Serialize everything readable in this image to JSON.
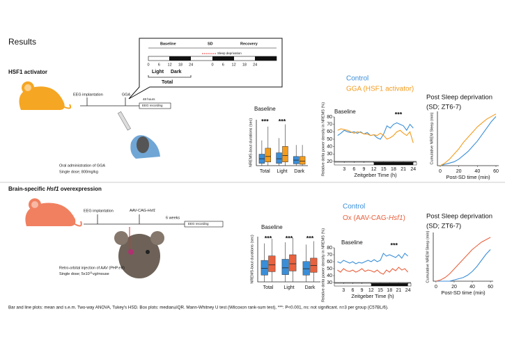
{
  "heading": "Results",
  "schedule": {
    "phases": [
      "Baseline",
      "SD",
      "Recovery"
    ],
    "sd_label": "Sleep deprivation",
    "ticks": [
      "0",
      "6",
      "12",
      "18",
      "24",
      "0",
      "6",
      "12",
      "18",
      "24"
    ],
    "light": "Light",
    "dark": "Dark",
    "total": "Total"
  },
  "section1": {
    "title": "HSF1 activator",
    "steps": [
      "EEG implantation",
      "GGA",
      "48 hours",
      "EEG recording"
    ],
    "note": [
      "Oral administration of GGA",
      "Single dose; 800mg/kg"
    ],
    "legend": [
      "Control",
      "GGA (HSF1 activator)"
    ]
  },
  "section2": {
    "title": [
      "Brain-specific ",
      "Hsf1",
      " overexpression"
    ],
    "steps": [
      "EEG implantation",
      "AAV-CAG-",
      "Hsf1",
      "6 weeks",
      "EEG recording"
    ],
    "note": [
      "Retro-orbital injection of AAV (PHP.eB)",
      "Single dose; 5x10",
      "11",
      "vg/mouse"
    ],
    "legend": [
      "Control",
      "Ox (AAV-CAG-",
      "Hsf1",
      ")"
    ]
  },
  "footnote": "Bar and line plots: mean and s.e.m. Two-way ANOVA, Tukey's HSD. Box plots: median±IQR. Mann-Whitney U test (Wilcoxon rank-sum test), ***: P<0.001, ns: not significant. n=3 per group (C57BL/6).",
  "chart_data": [
    {
      "type": "box",
      "title": "Baseline",
      "ylabel": "NREMS-bout durations (sec)",
      "categories": [
        "Total",
        "Light",
        "Dark"
      ],
      "ylim": [
        0,
        100
      ],
      "significance": [
        "***",
        "***",
        null
      ],
      "series": [
        {
          "name": "Control",
          "color": "#3a8ed8",
          "q1": [
            5,
            5,
            4
          ],
          "median": [
            15,
            15,
            12
          ],
          "q3": [
            25,
            28,
            20
          ],
          "whisker_low": [
            0,
            0,
            0
          ],
          "whisker_high": [
            55,
            60,
            45
          ]
        },
        {
          "name": "GGA",
          "color": "#f39c1e",
          "q1": [
            8,
            8,
            3
          ],
          "median": [
            20,
            22,
            10
          ],
          "q3": [
            38,
            42,
            20
          ],
          "whisker_low": [
            0,
            0,
            0
          ],
          "whisker_high": [
            85,
            90,
            45
          ]
        }
      ]
    },
    {
      "type": "line",
      "title": "Baseline",
      "ylabel": "Relative delta power density in NREMS (%)",
      "xlabel": "Zeitgeber Time (h)",
      "x": [
        1,
        2,
        3,
        4,
        5,
        6,
        7,
        8,
        9,
        10,
        11,
        12,
        13,
        14,
        15,
        16,
        17,
        18,
        19,
        20,
        21,
        22,
        23,
        24
      ],
      "xlim": [
        0,
        25
      ],
      "xticks": [
        3,
        6,
        9,
        12,
        15,
        18,
        21,
        24
      ],
      "ylim": [
        20,
        80
      ],
      "yticks": [
        20,
        30,
        40,
        50,
        60,
        70,
        80
      ],
      "dark_period": [
        12,
        24
      ],
      "annotations": [
        {
          "text": "***",
          "x": 19.5
        }
      ],
      "series": [
        {
          "name": "Control",
          "color": "#3a8ed8",
          "values": [
            55,
            58,
            62,
            60,
            59,
            60,
            58,
            60,
            57,
            59,
            55,
            56,
            52,
            50,
            57,
            68,
            65,
            70,
            72,
            70,
            68,
            62,
            70,
            65
          ]
        },
        {
          "name": "GGA",
          "color": "#f39c1e",
          "values": [
            62,
            64,
            63,
            62,
            60,
            58,
            60,
            59,
            57,
            57,
            55,
            56,
            55,
            58,
            55,
            50,
            52,
            55,
            60,
            62,
            58,
            55,
            60,
            45
          ]
        }
      ]
    },
    {
      "type": "line",
      "title": [
        "Post Sleep deprivation",
        "(SD; ZT6-7)"
      ],
      "ylabel": "Cumulative NREM Sleep (min)",
      "xlabel": "Post-SD time (min)",
      "x": [
        0,
        5,
        10,
        15,
        20,
        25,
        30,
        35,
        40,
        45,
        50,
        55,
        60
      ],
      "xlim": [
        -3,
        63
      ],
      "xticks": [
        0,
        20,
        40,
        60
      ],
      "ylim": [
        0,
        42
      ],
      "series": [
        {
          "name": "Control",
          "color": "#3a8ed8",
          "values": [
            0,
            1,
            2,
            3,
            5,
            8,
            11,
            15,
            19,
            24,
            29,
            34,
            38
          ]
        },
        {
          "name": "GGA",
          "color": "#f39c1e",
          "values": [
            0,
            2,
            5,
            9,
            13,
            18,
            22,
            26,
            30,
            33,
            36,
            38,
            40
          ]
        }
      ]
    },
    {
      "type": "box",
      "title": "Baseline",
      "ylabel": "NREMS-bout durations (sec)",
      "categories": [
        "Total",
        "Light",
        "Dark"
      ],
      "ylim": [
        0,
        200
      ],
      "significance": [
        "***",
        "***",
        "***"
      ],
      "series": [
        {
          "name": "Control",
          "color": "#3a8ed8",
          "q1": [
            30,
            32,
            30
          ],
          "median": [
            60,
            62,
            58
          ],
          "q3": [
            95,
            100,
            90
          ],
          "whisker_low": [
            0,
            0,
            0
          ],
          "whisker_high": [
            170,
            175,
            165
          ]
        },
        {
          "name": "Ox",
          "color": "#e8623f",
          "q1": [
            45,
            48,
            42
          ],
          "median": [
            75,
            80,
            72
          ],
          "q3": [
            115,
            120,
            105
          ],
          "whisker_low": [
            0,
            0,
            0
          ],
          "whisker_high": [
            190,
            195,
            180
          ]
        }
      ]
    },
    {
      "type": "line",
      "title": "Baseline",
      "ylabel": "Relative delta power density in NREMS (%)",
      "xlabel": "Zeitgeber Time (h)",
      "x": [
        1,
        2,
        3,
        4,
        5,
        6,
        7,
        8,
        9,
        10,
        11,
        12,
        13,
        14,
        15,
        16,
        17,
        18,
        19,
        20,
        21,
        22,
        23,
        24
      ],
      "xlim": [
        0,
        25
      ],
      "xticks": [
        3,
        6,
        9,
        12,
        15,
        18,
        21,
        24
      ],
      "ylim": [
        30,
        80
      ],
      "yticks": [
        30,
        40,
        50,
        60,
        70,
        80
      ],
      "dark_period": [
        12,
        24
      ],
      "annotations": [
        {
          "text": "***",
          "x": 19.5
        }
      ],
      "series": [
        {
          "name": "Control",
          "color": "#3a8ed8",
          "values": [
            60,
            58,
            62,
            60,
            58,
            60,
            57,
            59,
            58,
            60,
            62,
            60,
            63,
            60,
            62,
            72,
            68,
            70,
            68,
            66,
            70,
            65,
            72,
            68
          ]
        },
        {
          "name": "Ox",
          "color": "#e8623f",
          "values": [
            48,
            45,
            50,
            47,
            46,
            48,
            45,
            47,
            50,
            46,
            48,
            47,
            45,
            48,
            44,
            42,
            48,
            45,
            50,
            47,
            52,
            48,
            50,
            45
          ]
        }
      ]
    },
    {
      "type": "line",
      "title": [
        "Post Sleep deprivation",
        "(SD; ZT6-7)"
      ],
      "ylabel": "Cumulative NREM Sleep (min)",
      "xlabel": "Post-SD time (min)",
      "x": [
        0,
        5,
        10,
        15,
        20,
        25,
        30,
        35,
        40,
        45,
        50,
        55,
        60
      ],
      "xlim": [
        -3,
        63
      ],
      "xticks": [
        0,
        20,
        40,
        60
      ],
      "ylim": [
        0,
        40
      ],
      "series": [
        {
          "name": "Control",
          "color": "#3a8ed8",
          "values": [
            0,
            0,
            0,
            0,
            1,
            2,
            3,
            5,
            8,
            12,
            17,
            22,
            26
          ]
        },
        {
          "name": "Ox",
          "color": "#e8623f",
          "values": [
            0,
            1,
            3,
            6,
            10,
            14,
            18,
            22,
            26,
            29,
            32,
            34,
            36
          ]
        }
      ]
    }
  ]
}
